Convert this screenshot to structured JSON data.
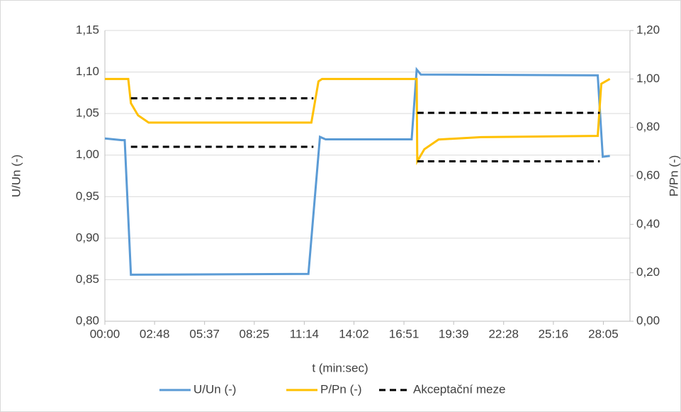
{
  "chart_data": {
    "type": "line",
    "xlabel": "t (min:sec)",
    "ylabel": "U/Un (-)",
    "y2label": "P/Pn (-)",
    "xlim": [
      0,
      1775
    ],
    "xticks": [
      {
        "value": 0,
        "label": "00:00"
      },
      {
        "value": 168,
        "label": "02:48"
      },
      {
        "value": 337,
        "label": "05:37"
      },
      {
        "value": 505,
        "label": "08:25"
      },
      {
        "value": 674,
        "label": "11:14"
      },
      {
        "value": 842,
        "label": "14:02"
      },
      {
        "value": 1011,
        "label": "16:51"
      },
      {
        "value": 1179,
        "label": "19:39"
      },
      {
        "value": 1348,
        "label": "22:28"
      },
      {
        "value": 1516,
        "label": "25:16"
      },
      {
        "value": 1685,
        "label": "28:05"
      }
    ],
    "ylim": [
      0.8,
      1.15
    ],
    "yticks": [
      {
        "value": 0.8,
        "label": "0,80"
      },
      {
        "value": 0.85,
        "label": "0,85"
      },
      {
        "value": 0.9,
        "label": "0,90"
      },
      {
        "value": 0.95,
        "label": "0,95"
      },
      {
        "value": 1.0,
        "label": "1,00"
      },
      {
        "value": 1.05,
        "label": "1,05"
      },
      {
        "value": 1.1,
        "label": "1,10"
      },
      {
        "value": 1.15,
        "label": "1,15"
      }
    ],
    "y2lim": [
      0,
      1.2
    ],
    "y2ticks": [
      {
        "value": 0,
        "label": "0,00"
      },
      {
        "value": 0.2,
        "label": "0,20"
      },
      {
        "value": 0.4,
        "label": "0,40"
      },
      {
        "value": 0.6,
        "label": "0,60"
      },
      {
        "value": 0.8,
        "label": "0,80"
      },
      {
        "value": 1.0,
        "label": "1,00"
      },
      {
        "value": 1.2,
        "label": "1,20"
      }
    ],
    "grid": true,
    "legend": "bottom",
    "series": [
      {
        "name": "U/Un (-)",
        "color": "#5b9bd5",
        "dash": false,
        "x": [
          0,
          57,
          67,
          88,
          688,
          727,
          746,
          1037,
          1054,
          1068,
          1666,
          1683,
          1707
        ],
        "values": [
          1.02,
          1.018,
          1.018,
          0.856,
          0.857,
          1.022,
          1.019,
          1.019,
          1.103,
          1.097,
          1.096,
          0.998,
          0.999
        ]
      },
      {
        "name": "P/Pn (-)",
        "color": "#ffc000",
        "dash": false,
        "axis": "y2",
        "x": [
          0,
          79,
          88,
          112,
          148,
          698,
          722,
          734,
          1054,
          1056,
          1080,
          1128,
          1272,
          1666,
          1678,
          1707
        ],
        "values": [
          1.0,
          1.0,
          0.9,
          0.85,
          0.82,
          0.82,
          0.99,
          1.0,
          1.0,
          0.66,
          0.71,
          0.75,
          0.76,
          0.765,
          0.98,
          1.0
        ]
      },
      {
        "name": "Akceptační meze",
        "color": "#000000",
        "dash": true,
        "axis": "y2",
        "x": [
          88,
          705,
          null,
          88,
          705,
          null,
          1056,
          1673,
          null,
          1056,
          1673
        ],
        "values": [
          0.92,
          0.92,
          null,
          0.72,
          0.72,
          null,
          0.86,
          0.86,
          null,
          0.66,
          0.66
        ]
      }
    ]
  }
}
